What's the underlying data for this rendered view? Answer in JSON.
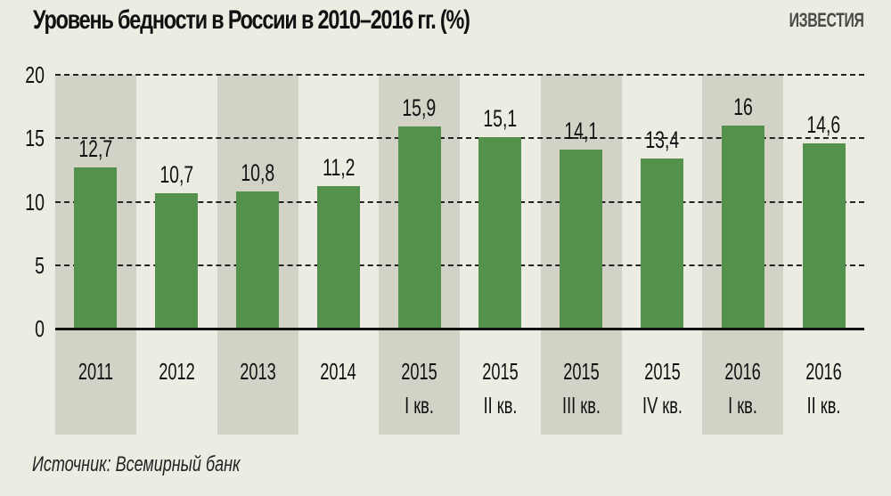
{
  "header": {
    "title": "Уровень бедности в России в 2010–2016 гг. (%)",
    "brand": "ИЗВЕСТИЯ"
  },
  "footer": {
    "source": "Источник: Всемирный банк"
  },
  "colors": {
    "background": "#ecece3",
    "band": "#d2d2c6",
    "bar": "#53914d",
    "text": "#111111"
  },
  "chart_data": {
    "type": "bar",
    "title": "Уровень бедности в России в 2010–2016 гг. (%)",
    "xlabel": "",
    "ylabel": "%",
    "ylim": [
      0,
      20
    ],
    "yticks": [
      0,
      5,
      10,
      15,
      20
    ],
    "grid": true,
    "categories": [
      "2011",
      "2012",
      "2013",
      "2014",
      "2015 I кв.",
      "2015 II кв.",
      "2015 III кв.",
      "2015 IV кв.",
      "2016 I кв.",
      "2016 II кв."
    ],
    "category_lines": [
      [
        "2011",
        ""
      ],
      [
        "2012",
        ""
      ],
      [
        "2013",
        ""
      ],
      [
        "2014",
        ""
      ],
      [
        "2015",
        "I кв."
      ],
      [
        "2015",
        "II кв."
      ],
      [
        "2015",
        "III кв."
      ],
      [
        "2015",
        "IV кв."
      ],
      [
        "2016",
        "I кв."
      ],
      [
        "2016",
        "II кв."
      ]
    ],
    "values": [
      12.7,
      10.7,
      10.8,
      11.2,
      15.9,
      15.1,
      14.1,
      13.4,
      16,
      14.6
    ],
    "value_labels": [
      "12,7",
      "10,7",
      "10,8",
      "11,2",
      "15,9",
      "15,1",
      "14,1",
      "13,4",
      "16",
      "14,6"
    ],
    "source": "Источник: Всемирный банк"
  }
}
